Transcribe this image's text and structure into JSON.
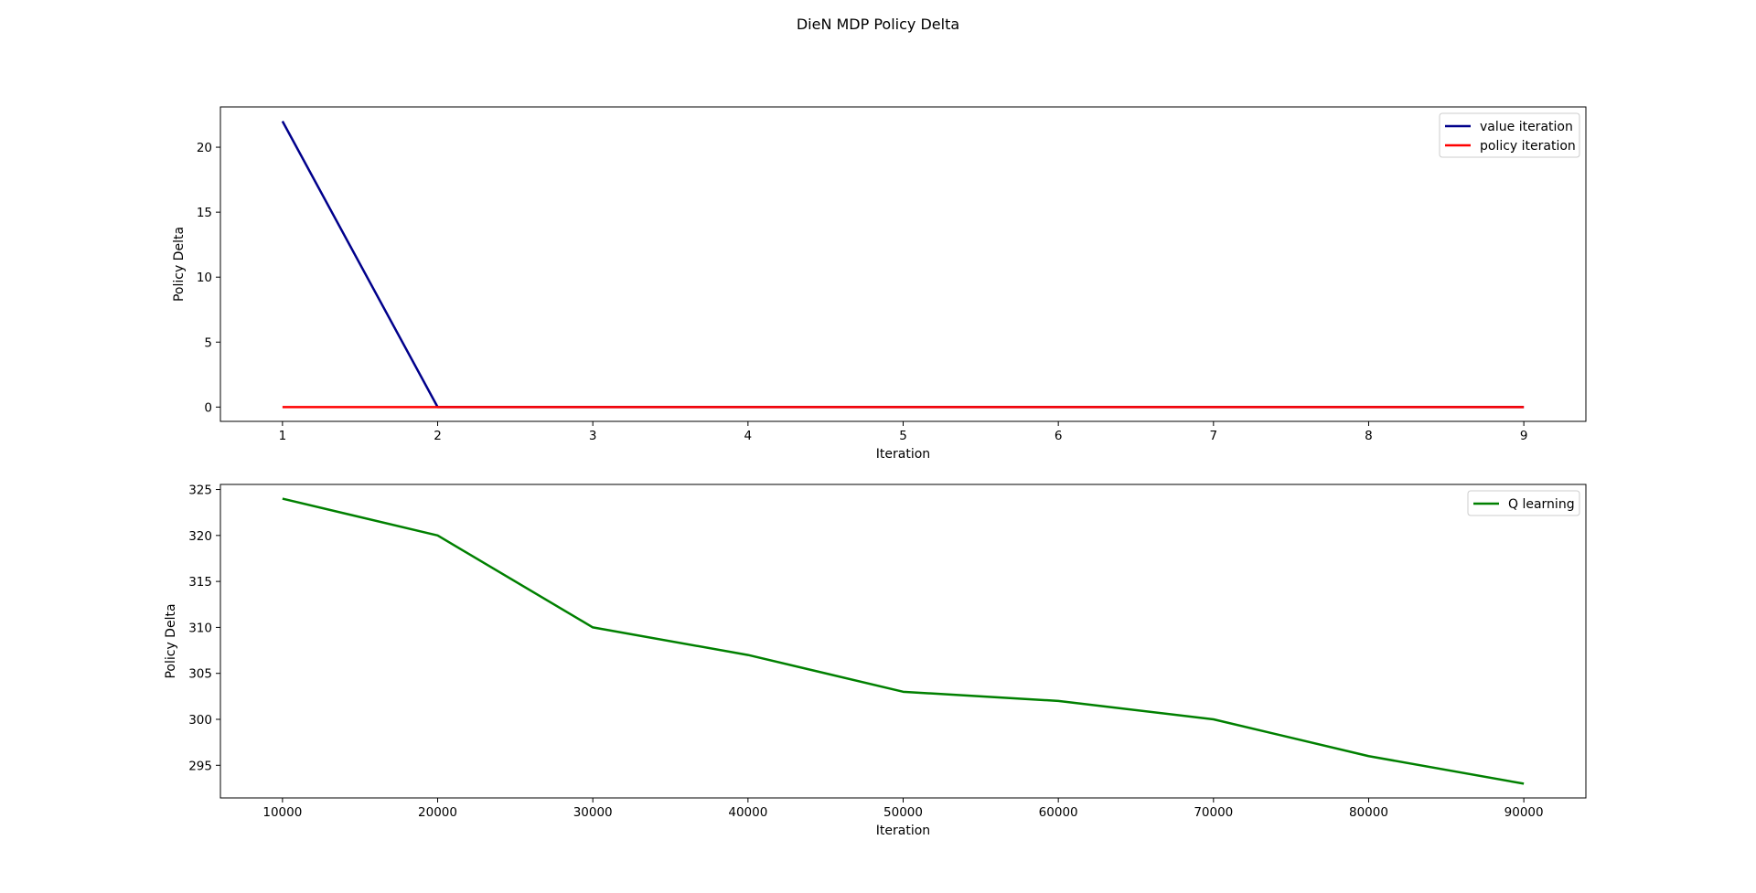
{
  "figure": {
    "title": "DieN MDP Policy Delta"
  },
  "chart_data": [
    {
      "type": "line",
      "title": "",
      "xlabel": "Iteration",
      "ylabel": "Policy Delta",
      "x": [
        1,
        2,
        3,
        4,
        5,
        6,
        7,
        8,
        9
      ],
      "xlim": [
        0.6,
        9.4
      ],
      "ylim": [
        -1.1,
        23.1
      ],
      "xticks": [
        1,
        2,
        3,
        4,
        5,
        6,
        7,
        8,
        9
      ],
      "yticks": [
        0,
        5,
        10,
        15,
        20
      ],
      "grid": false,
      "legend_position": "top-right",
      "series": [
        {
          "name": "value iteration",
          "color": "#00008b",
          "values": [
            22,
            0,
            0,
            0,
            0,
            0,
            0,
            0,
            0
          ]
        },
        {
          "name": "policy iteration",
          "color": "#ff0000",
          "values": [
            0,
            0,
            0,
            0,
            0,
            0,
            0,
            0,
            0
          ]
        }
      ]
    },
    {
      "type": "line",
      "title": "",
      "xlabel": "Iteration",
      "ylabel": "Policy Delta",
      "x": [
        10000,
        20000,
        30000,
        40000,
        50000,
        60000,
        70000,
        80000,
        90000
      ],
      "xlim": [
        6000,
        94000
      ],
      "ylim": [
        291.45,
        325.55
      ],
      "xticks": [
        10000,
        20000,
        30000,
        40000,
        50000,
        60000,
        70000,
        80000,
        90000
      ],
      "yticks": [
        295,
        300,
        305,
        310,
        315,
        320,
        325
      ],
      "grid": false,
      "legend_position": "top-right",
      "series": [
        {
          "name": "Q learning",
          "color": "#008000",
          "values": [
            324,
            320,
            310,
            307,
            303,
            302,
            300,
            296,
            293
          ]
        }
      ]
    }
  ]
}
